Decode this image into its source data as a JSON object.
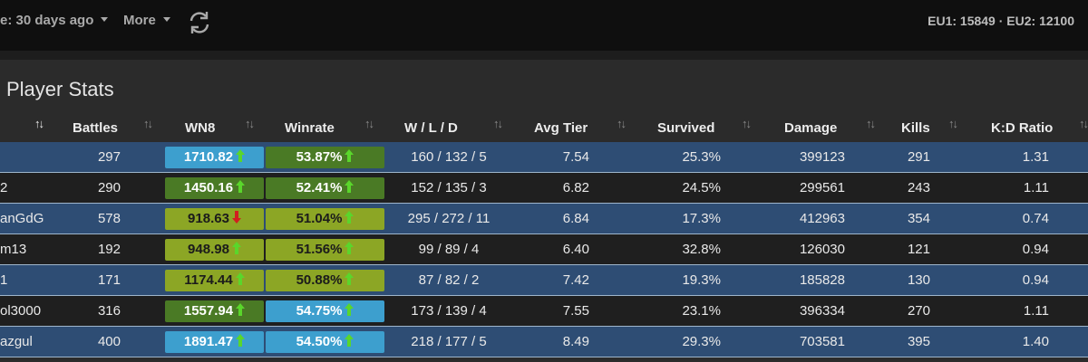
{
  "toolbar": {
    "date_filter": "e: 30 days ago",
    "more_label": "More",
    "server_status": "EU1: 15849 · EU2: 12100"
  },
  "panel": {
    "title": "Player Stats"
  },
  "columns": [
    "",
    "Battles",
    "WN8",
    "Winrate",
    "W / L / D",
    "Avg Tier",
    "Survived",
    "Damage",
    "Kills",
    "K:D Ratio"
  ],
  "colors": {
    "wn8_blue": "#3d9fce",
    "wn8_dark_green": "#4a7a25",
    "wn8_light_green": "#8ca625",
    "arrow_up": "#5ad62b",
    "arrow_down": "#d11f1f"
  },
  "rows": [
    {
      "name": "",
      "battles": "297",
      "wn8": "1710.82",
      "wn8_color": "#3d9fce",
      "wn8_trend": "up",
      "winrate": "53.87%",
      "winrate_color": "#4a7a25",
      "winrate_trend": "up",
      "wld": "160 / 132 / 5",
      "avg_tier": "7.54",
      "survived": "25.3%",
      "damage": "399123",
      "kills": "291",
      "kd": "1.31"
    },
    {
      "name": "2",
      "battles": "290",
      "wn8": "1450.16",
      "wn8_color": "#4a7a25",
      "wn8_trend": "up",
      "winrate": "52.41%",
      "winrate_color": "#4a7a25",
      "winrate_trend": "up",
      "wld": "152 / 135 / 3",
      "avg_tier": "6.82",
      "survived": "24.5%",
      "damage": "299561",
      "kills": "243",
      "kd": "1.11"
    },
    {
      "name": "anGdG",
      "battles": "578",
      "wn8": "918.63",
      "wn8_color": "#8ca625",
      "wn8_trend": "down",
      "winrate": "51.04%",
      "winrate_color": "#8ca625",
      "winrate_trend": "up",
      "wld": "295 / 272 / 11",
      "avg_tier": "6.84",
      "survived": "17.3%",
      "damage": "412963",
      "kills": "354",
      "kd": "0.74"
    },
    {
      "name": "m13",
      "battles": "192",
      "wn8": "948.98",
      "wn8_color": "#8ca625",
      "wn8_trend": "up",
      "winrate": "51.56%",
      "winrate_color": "#8ca625",
      "winrate_trend": "up",
      "wld": "99 / 89 / 4",
      "avg_tier": "6.40",
      "survived": "32.8%",
      "damage": "126030",
      "kills": "121",
      "kd": "0.94"
    },
    {
      "name": "1",
      "battles": "171",
      "wn8": "1174.44",
      "wn8_color": "#8ca625",
      "wn8_trend": "up",
      "winrate": "50.88%",
      "winrate_color": "#8ca625",
      "winrate_trend": "up",
      "wld": "87 / 82 / 2",
      "avg_tier": "7.42",
      "survived": "19.3%",
      "damage": "185828",
      "kills": "130",
      "kd": "0.94"
    },
    {
      "name": "ol3000",
      "battles": "316",
      "wn8": "1557.94",
      "wn8_color": "#4a7a25",
      "wn8_trend": "up",
      "winrate": "54.75%",
      "winrate_color": "#3d9fce",
      "winrate_trend": "up",
      "wld": "173 / 139 / 4",
      "avg_tier": "7.55",
      "survived": "23.1%",
      "damage": "396334",
      "kills": "270",
      "kd": "1.11"
    },
    {
      "name": "azgul",
      "battles": "400",
      "wn8": "1891.47",
      "wn8_color": "#3d9fce",
      "wn8_trend": "up",
      "winrate": "54.50%",
      "winrate_color": "#3d9fce",
      "winrate_trend": "up",
      "wld": "218 / 177 / 5",
      "avg_tier": "8.49",
      "survived": "29.3%",
      "damage": "703581",
      "kills": "395",
      "kd": "1.40"
    }
  ]
}
